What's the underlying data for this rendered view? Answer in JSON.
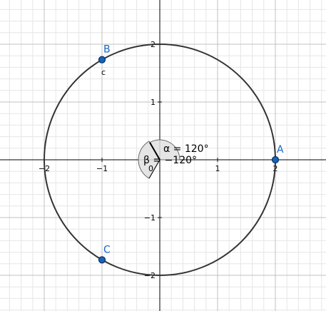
{
  "graphics": {
    "x_ticks": [
      {
        "label": "−2",
        "value": -2
      },
      {
        "label": "−1",
        "value": -1
      },
      {
        "label": "1",
        "value": 1
      },
      {
        "label": "2",
        "value": 2
      }
    ],
    "y_ticks": [
      {
        "label": "2",
        "value": 2
      },
      {
        "label": "1",
        "value": 1
      },
      {
        "label": "−1",
        "value": -1
      },
      {
        "label": "−2",
        "value": -2
      }
    ],
    "circle": {
      "center": [
        0,
        0
      ],
      "radius": 2,
      "color": "#333333"
    },
    "points": [
      {
        "name": "A",
        "x": 2,
        "y": 0,
        "color": "#1565c0"
      },
      {
        "name": "B",
        "x": -1,
        "y": 1.732,
        "color": "#1565c0"
      },
      {
        "name": "C",
        "x": -1,
        "y": -1.732,
        "color": "#1565c0"
      }
    ],
    "circle_caption": "c",
    "origin_label": "0",
    "angle_alpha": {
      "label": "α = 120°",
      "degrees": 120
    },
    "angle_beta": {
      "label": "β = −120°",
      "degrees": -120
    },
    "colors": {
      "axis": "#000000",
      "grid_major": "#c0c0c0",
      "grid_minor": "#e6e6e6",
      "point_fill": "#1565c0",
      "label": "#1565c0",
      "sector_fill": "#e0e0e0"
    }
  }
}
